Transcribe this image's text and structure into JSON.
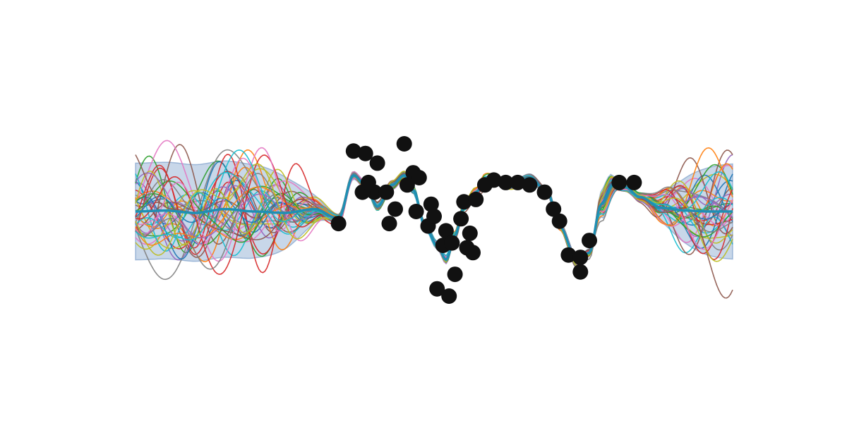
{
  "chart_data": {
    "type": "line",
    "title": "",
    "xlabel": "",
    "ylabel": "",
    "axes_visible": false,
    "grid": false,
    "legend": "none",
    "xlim": [
      0,
      10
    ],
    "ylim": [
      -3.5,
      3.5
    ],
    "band": {
      "lower": -1.0,
      "upper": 1.0,
      "color": "#4a7ab5",
      "opacity": 0.3
    },
    "mean_curve": {
      "color": "#1f8fb3",
      "x": [
        0,
        0.5,
        1,
        1.5,
        2,
        2.5,
        3,
        3.4,
        3.65,
        3.85,
        4.05,
        4.3,
        4.5,
        4.65,
        4.85,
        5.05,
        5.2,
        5.35,
        5.5,
        5.7,
        5.85,
        6.0,
        6.3,
        6.6,
        6.9,
        7.1,
        7.4,
        7.6,
        7.8,
        8.0,
        8.2,
        8.45,
        8.8,
        9.2,
        9.6,
        10
      ],
      "y": [
        0.0,
        0.02,
        -0.03,
        0.05,
        0.0,
        -0.03,
        0.05,
        -0.15,
        0.75,
        0.55,
        0.1,
        0.55,
        0.75,
        0.45,
        -0.3,
        -0.7,
        -1.0,
        -0.5,
        0.1,
        0.4,
        0.6,
        0.62,
        0.55,
        0.7,
        0.4,
        -0.3,
        -1.05,
        -0.85,
        0.15,
        0.55,
        0.5,
        0.3,
        0.08,
        0.02,
        0.0,
        0.0
      ]
    },
    "observations": {
      "color": "#111111",
      "x": [
        3.4,
        3.65,
        3.85,
        4.0,
        3.8,
        4.2,
        3.9,
        4.25,
        4.5,
        4.55,
        4.35,
        4.65,
        4.75,
        4.7,
        4.9,
        5.0,
        4.95,
        5.15,
        5.2,
        5.3,
        5.35,
        5.45,
        5.5,
        5.55,
        5.6,
        5.7,
        5.85,
        6.0,
        6.2,
        6.4,
        6.6,
        6.85,
        7.0,
        7.1,
        7.25,
        7.45,
        7.6,
        7.45,
        8.1,
        8.35,
        4.05,
        5.65,
        5.25,
        5.05
      ],
      "y": [
        -0.25,
        1.25,
        1.2,
        0.4,
        0.4,
        0.4,
        0.6,
        -0.25,
        1.4,
        0.55,
        0.05,
        0.8,
        0.7,
        0.0,
        -0.3,
        -0.1,
        0.15,
        -0.7,
        -0.4,
        -0.65,
        -1.3,
        -0.15,
        0.2,
        -0.75,
        -0.45,
        0.25,
        0.55,
        0.65,
        0.6,
        0.6,
        0.55,
        0.4,
        0.05,
        -0.2,
        -0.9,
        -1.25,
        -0.6,
        -0.95,
        0.6,
        0.6,
        1.0,
        -0.85,
        -1.75,
        -1.6
      ]
    },
    "samples": {
      "count": 40,
      "palette": [
        "#1f77b4",
        "#ff7f0e",
        "#2ca02c",
        "#d62728",
        "#9467bd",
        "#8c564b",
        "#e377c2",
        "#7f7f7f",
        "#bcbd22",
        "#17becf"
      ],
      "opacity": 0.9
    }
  }
}
